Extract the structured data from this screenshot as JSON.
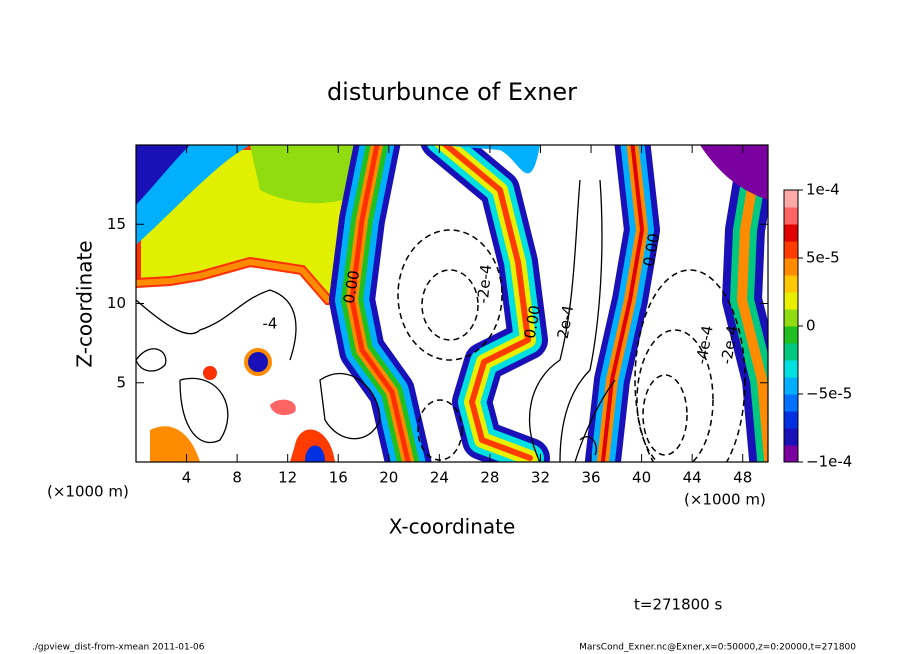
{
  "chart_data": {
    "type": "contour",
    "title": "disturbunce of Exner",
    "xlabel": "X-coordinate",
    "ylabel": "Z-coordinate",
    "unit_label": "(×1000 m)",
    "xlim": [
      0,
      50
    ],
    "ylim": [
      0,
      20
    ],
    "xticks": [
      4,
      8,
      12,
      16,
      20,
      24,
      28,
      32,
      36,
      40,
      44,
      48
    ],
    "yticks": [
      5,
      10,
      15
    ],
    "colorbar": {
      "lim": [
        -0.0001,
        0.0001
      ],
      "ticks": [
        {
          "value": -0.0001,
          "label": "−1e-4"
        },
        {
          "value": -5e-05,
          "label": "−5e-5"
        },
        0,
        {
          "value": 5e-05,
          "label": "5e-5"
        },
        {
          "value": 0.0001,
          "label": "1e-4"
        }
      ],
      "colors": [
        "#7a00a0",
        "#1a10b8",
        "#0030e0",
        "#0070ff",
        "#00b0ff",
        "#00e0e0",
        "#00c880",
        "#20c020",
        "#90dc10",
        "#e8f000",
        "#ffc800",
        "#ff8c00",
        "#ff3c00",
        "#e00000",
        "#ff6464",
        "#ffa8a8"
      ]
    },
    "contour_labels": [
      "0.00",
      "0.00",
      "0.00",
      "-2e-4",
      "2e-4",
      "-4e-4",
      "-2e-4",
      "-4"
    ],
    "time_label": "t=271800 s",
    "footer_left": "./gpview_dist-from-xmean  2011-01-06",
    "footer_right": "MarsCond_Exner.nc@Exner,x=0:50000,z=0:20000,t=271800"
  }
}
